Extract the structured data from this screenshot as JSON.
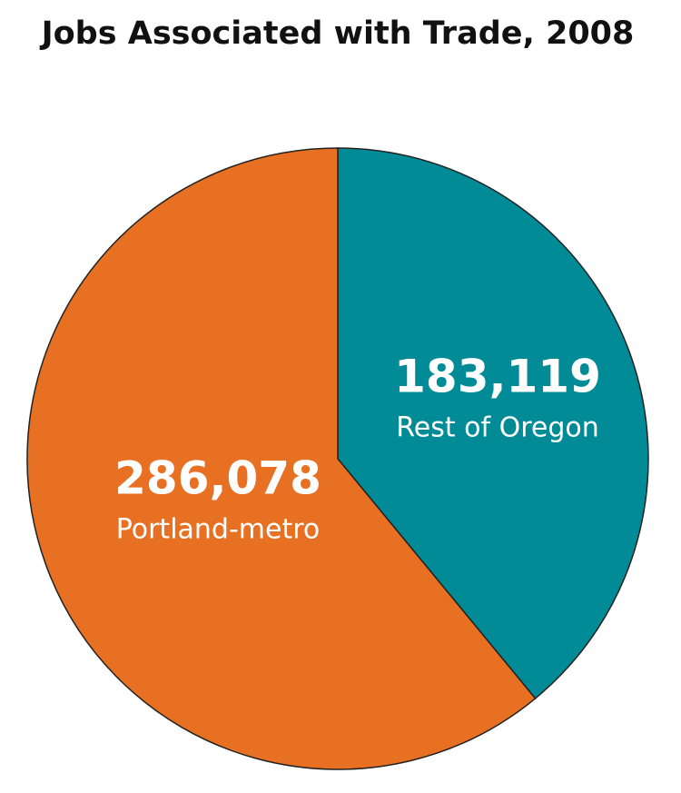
{
  "chart_data": {
    "type": "pie",
    "title": "Jobs Associated with Trade, 2008",
    "categories": [
      "Rest of Oregon",
      "Portland-metro"
    ],
    "values": [
      183119,
      286078
    ],
    "value_labels": [
      "183,119",
      "286,078"
    ],
    "colors": [
      "#008b96",
      "#e87022"
    ]
  }
}
